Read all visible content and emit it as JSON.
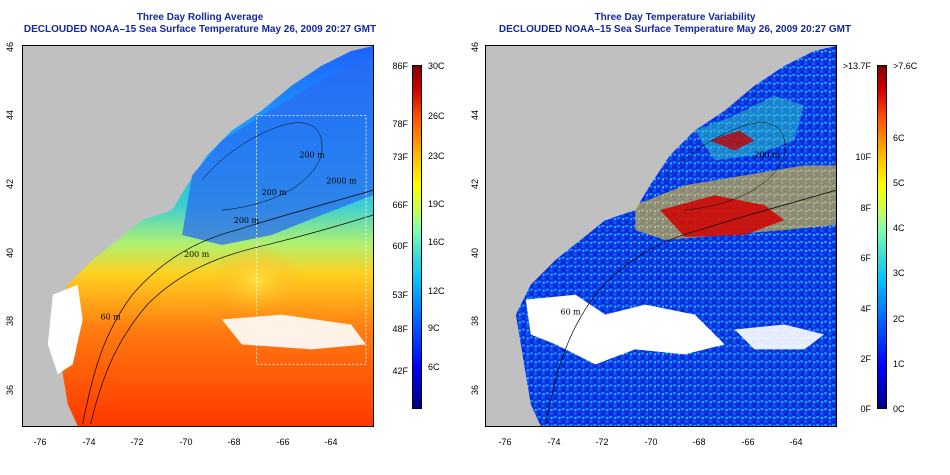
{
  "panels": [
    {
      "title_line1": "Three Day Rolling Average",
      "title_line2": "DECLOUDED NOAA–15 Sea Surface Temperature May 26, 2009 20:27 GMT",
      "y_ticks": [
        "46",
        "44",
        "42",
        "40",
        "38",
        "36"
      ],
      "x_ticks": [
        "-76",
        "-74",
        "-72",
        "-70",
        "-68",
        "-66",
        "-64"
      ],
      "colorbar_f": [
        "86F",
        "78F",
        "73F",
        "66F",
        "60F",
        "53F",
        "48F",
        "42F"
      ],
      "colorbar_c": [
        "30C",
        "26C",
        "23C",
        "19C",
        "16C",
        "12C",
        "9C",
        "6C"
      ],
      "contour_labels": [
        "200 m",
        "2000 m",
        "200 m",
        "200 m",
        "60 m",
        "200 m"
      ]
    },
    {
      "title_line1": "Three Day Temperature Variability",
      "title_line2": "DECLOUDED NOAA–15 Sea Surface Temperature May 26, 2009 20:27 GMT",
      "y_ticks": [
        "46",
        "44",
        "42",
        "40",
        "38",
        "36"
      ],
      "x_ticks": [
        "-76",
        "-74",
        "-72",
        "-70",
        "-68",
        "-66",
        "-64"
      ],
      "colorbar_f": [
        ">13.7F",
        "10F",
        "8F",
        "6F",
        "4F",
        "2F",
        "0F"
      ],
      "colorbar_c": [
        ">7.6C",
        "6C",
        "5C",
        "4C",
        "3C",
        "2C",
        "1C",
        "0C"
      ],
      "contour_labels": [
        "200 m",
        "60 m"
      ]
    }
  ],
  "colors": {
    "title": "#1428a0",
    "land": "#c0c0c0",
    "cloud": "#ffffff"
  },
  "colorbar_scale": {
    "left_celsius_range": [
      4,
      30
    ],
    "right_celsius_range": [
      0,
      7.6
    ]
  }
}
